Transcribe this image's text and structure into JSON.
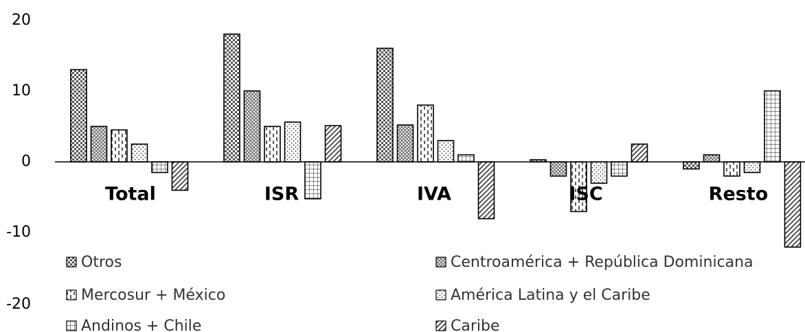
{
  "chart_data": {
    "type": "bar",
    "categories": [
      "Total",
      "ISR",
      "IVA",
      "ISC",
      "Resto"
    ],
    "series": [
      {
        "name": "Otros",
        "values": [
          13,
          18,
          16,
          0.3,
          -1
        ],
        "pattern": "checker"
      },
      {
        "name": "Centroamérica + República Dominicana",
        "values": [
          5,
          10,
          5.2,
          -2,
          1
        ],
        "pattern": "crosshatch"
      },
      {
        "name": "Mercosur + México",
        "values": [
          4.5,
          5,
          8,
          -7,
          -2
        ],
        "pattern": "dashes"
      },
      {
        "name": "América Latina y el Caribe",
        "values": [
          2.5,
          5.6,
          3,
          -3,
          -1.5
        ],
        "pattern": "dots"
      },
      {
        "name": "Andinos + Chile",
        "values": [
          -1.5,
          -5.2,
          1,
          -2,
          10
        ],
        "pattern": "grid"
      },
      {
        "name": "Caribe",
        "values": [
          -4,
          5.1,
          -8,
          2.5,
          -12
        ],
        "pattern": "diagonal"
      }
    ],
    "yticks": [
      20,
      10,
      0,
      -10,
      -20
    ],
    "ylim": [
      -20,
      20
    ],
    "legend_position": "bottom, two columns",
    "colors": {
      "bar_fill": "#ffffff",
      "bar_stroke": "#000000",
      "pattern": "#555555",
      "axis": "#000000"
    }
  }
}
